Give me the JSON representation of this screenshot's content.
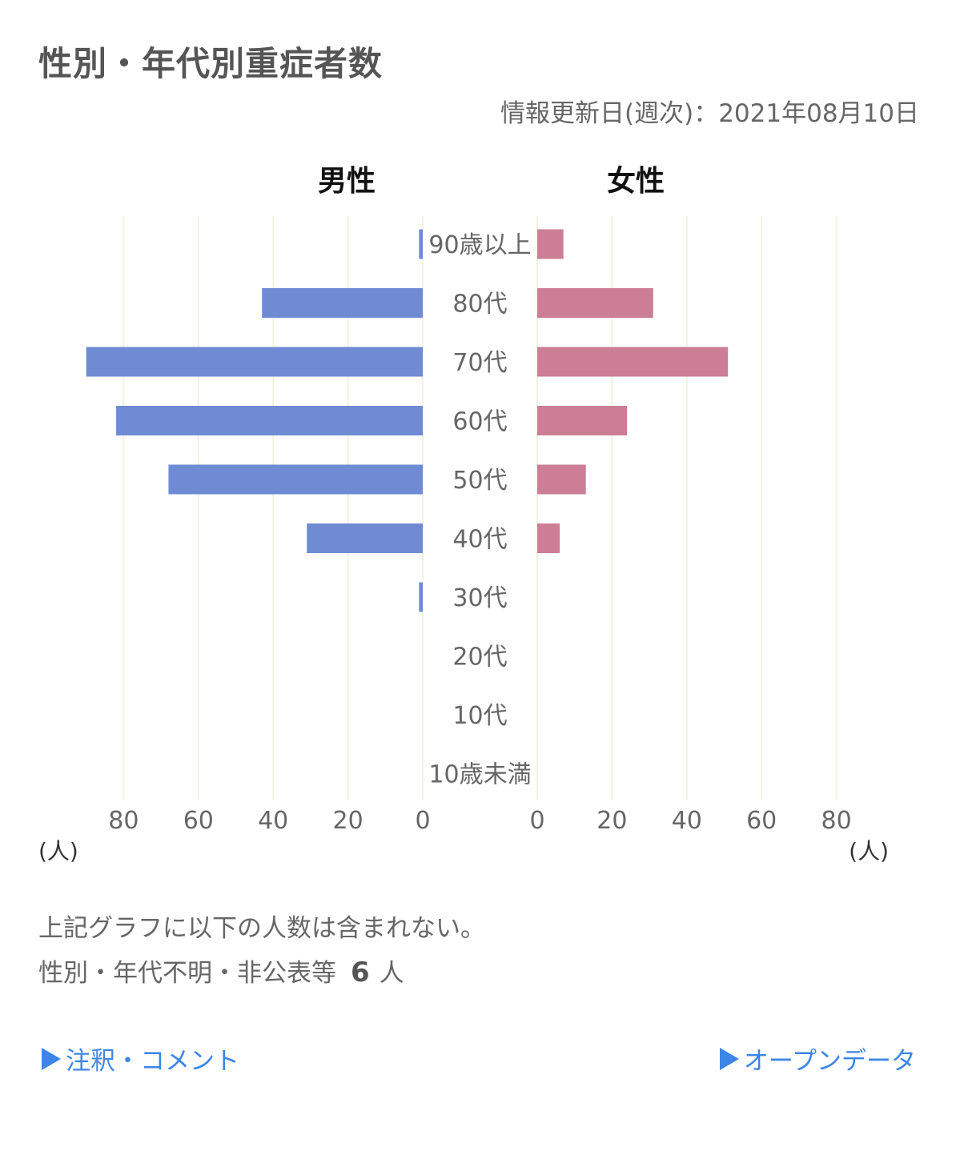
{
  "header": {
    "title": "性別・年代別重症者数",
    "updated": "情報更新日(週次)：2021年08月10日"
  },
  "chart_data": {
    "type": "bar",
    "orientation": "horizontal",
    "layout": "population-pyramid",
    "categories": [
      "90歳以上",
      "80代",
      "70代",
      "60代",
      "50代",
      "40代",
      "30代",
      "20代",
      "10代",
      "10歳未満"
    ],
    "series": [
      {
        "name": "男性",
        "values": [
          1,
          43,
          90,
          82,
          68,
          31,
          1,
          0,
          0,
          0
        ],
        "color": "#6e8bd4"
      },
      {
        "name": "女性",
        "values": [
          7,
          31,
          51,
          24,
          13,
          6,
          0,
          0,
          0,
          0
        ],
        "color": "#cb7e96"
      }
    ],
    "xlim": [
      0,
      80
    ],
    "xticks": [
      0,
      20,
      40,
      60,
      80
    ],
    "unit_left": "(人)",
    "unit_right": "(人)",
    "grid": true,
    "grid_color": "#f6f1dc"
  },
  "notes": {
    "line1": "上記グラフに以下の人数は含まれない。",
    "line2_prefix": "性別・年代不明・非公表等",
    "line2_count": "6",
    "line2_suffix": "人"
  },
  "links": {
    "comments": "注釈・コメント",
    "open_data": "オープンデータ"
  },
  "colors": {
    "link": "#3b86e6"
  }
}
